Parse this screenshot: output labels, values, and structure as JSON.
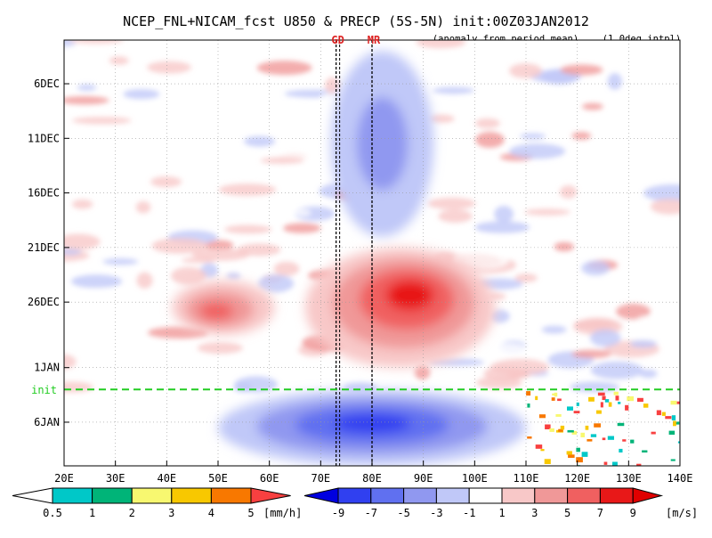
{
  "chart_data": {
    "type": "heatmap",
    "title": "NCEP_FNL+NICAM_fcst U850 & PRECP (5S-5N) init:00Z03JAN2012",
    "subtitle_left": "(anomaly from period mean)",
    "subtitle_right": "(1.0deg intpl)",
    "x_axis": {
      "range": [
        20,
        140
      ],
      "ticks": [
        {
          "value": 20,
          "label": "20E"
        },
        {
          "value": 30,
          "label": "30E"
        },
        {
          "value": 40,
          "label": "40E"
        },
        {
          "value": 50,
          "label": "50E"
        },
        {
          "value": 60,
          "label": "60E"
        },
        {
          "value": 70,
          "label": "70E"
        },
        {
          "value": 80,
          "label": "80E"
        },
        {
          "value": 90,
          "label": "90E"
        },
        {
          "value": 100,
          "label": "100E"
        },
        {
          "value": 110,
          "label": "110E"
        },
        {
          "value": 120,
          "label": "120E"
        },
        {
          "value": 130,
          "label": "130E"
        },
        {
          "value": 140,
          "label": "140E"
        }
      ]
    },
    "y_axis": {
      "range": [
        "2011-12-02",
        "2012-01-10"
      ],
      "ticks": [
        {
          "value": "2011-12-06",
          "label": "6DEC"
        },
        {
          "value": "2011-12-11",
          "label": "11DEC"
        },
        {
          "value": "2011-12-16",
          "label": "16DEC"
        },
        {
          "value": "2011-12-21",
          "label": "21DEC"
        },
        {
          "value": "2011-12-26",
          "label": "26DEC"
        },
        {
          "value": "2012-01-01",
          "label": "1JAN"
        },
        {
          "value": "2012-01-06",
          "label": "6JAN"
        }
      ]
    },
    "init_line": {
      "value": "2012-01-03",
      "label": "init",
      "color": "#22cc22"
    },
    "markers": [
      {
        "label": "GD",
        "lon": 73,
        "color": "#dd2222"
      },
      {
        "label": "MR",
        "lon": 80,
        "color": "#dd2222"
      }
    ],
    "precip_legend": {
      "unit": "[mm/h]",
      "labels": [
        "0.5",
        "1",
        "2",
        "3",
        "4",
        "5"
      ],
      "colors": [
        "#00c8c8",
        "#00b478",
        "#f8f870",
        "#f8c800",
        "#f87800",
        "#f84040"
      ]
    },
    "u850_legend": {
      "unit": "[m/s]",
      "labels": [
        "-9",
        "-7",
        "-5",
        "-3",
        "-1",
        "1",
        "3",
        "5",
        "7",
        "9"
      ],
      "colors": [
        "#0000e0",
        "#3040f0",
        "#6070f0",
        "#9098f0",
        "#c0c8f8",
        "#ffffff",
        "#f8c8c8",
        "#f09898",
        "#f06060",
        "#e81818",
        "#e00000"
      ]
    },
    "features": [
      {
        "type": "westerly-anomaly",
        "lon_range": [
          67,
          104
        ],
        "date_range": [
          "2011-12-21",
          "2012-01-01"
        ],
        "peak_ms": 9,
        "peak_lon": 88,
        "peak_date": "2011-12-25"
      },
      {
        "type": "westerly-anomaly",
        "lon_range": [
          41,
          61
        ],
        "date_range": [
          "2011-12-24",
          "2011-12-29"
        ],
        "peak_ms": 7,
        "peak_lon": 49,
        "peak_date": "2011-12-27"
      },
      {
        "type": "easterly-anomaly",
        "lon_range": [
          72,
          92
        ],
        "date_range": [
          "2011-12-03",
          "2011-12-20"
        ],
        "peak_ms": -5
      },
      {
        "type": "easterly-anomaly",
        "lon_range": [
          50,
          110
        ],
        "date_range": [
          "2012-01-03",
          "2012-01-10"
        ],
        "peak_ms": -9,
        "peak_lon": 80,
        "peak_date": "2012-01-06"
      },
      {
        "type": "precipitation",
        "lon_range": [
          110,
          140
        ],
        "date_range": [
          "2012-01-03",
          "2012-01-10"
        ],
        "peak_mmh": 5
      }
    ]
  }
}
